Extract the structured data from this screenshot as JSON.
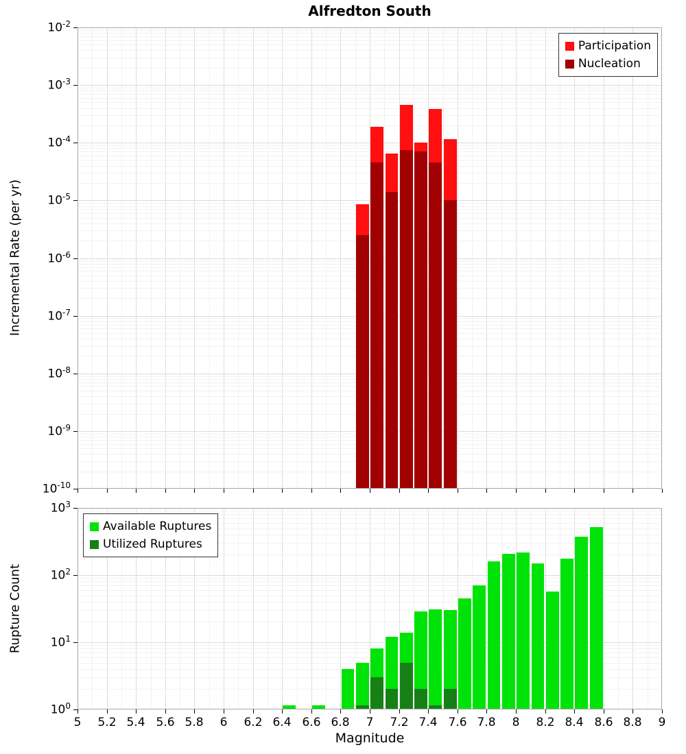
{
  "title": "Alfredton South",
  "chart_data": [
    {
      "type": "bar",
      "title": "Alfredton South",
      "ylabel": "Incremental Rate (per yr)",
      "yscale": "log",
      "ylim": [
        1e-10,
        0.01
      ],
      "xlim": [
        5,
        9
      ],
      "bin_width": 0.1,
      "grid": true,
      "legend_position": "top-right",
      "x": [
        6.95,
        7.05,
        7.15,
        7.25,
        7.35,
        7.45,
        7.55
      ],
      "series": [
        {
          "name": "Participation",
          "color": "#ff0f0f",
          "values": [
            8.5e-06,
            0.00019,
            6.5e-05,
            0.00045,
            0.0001,
            0.00038,
            0.000115
          ]
        },
        {
          "name": "Nucleation",
          "color": "#a00000",
          "values": [
            2.5e-06,
            4.5e-05,
            1.4e-05,
            7.5e-05,
            7e-05,
            4.5e-05,
            1e-05
          ]
        }
      ]
    },
    {
      "type": "bar",
      "ylabel": "Rupture Count",
      "xlabel": "Magnitude",
      "yscale": "log",
      "ylim": [
        1,
        1000
      ],
      "xlim": [
        5,
        9
      ],
      "bin_width": 0.1,
      "grid": true,
      "legend_position": "top-left",
      "xtick_labels": [
        "5",
        "5.2",
        "5.4",
        "5.6",
        "5.8",
        "6",
        "6.2",
        "6.4",
        "6.6",
        "6.8",
        "7",
        "7.2",
        "7.4",
        "7.6",
        "7.8",
        "8",
        "8.2",
        "8.4",
        "8.6",
        "8.8",
        "9"
      ],
      "x": [
        6.45,
        6.65,
        6.85,
        6.95,
        7.05,
        7.15,
        7.25,
        7.35,
        7.45,
        7.55,
        7.65,
        7.75,
        7.85,
        7.95,
        8.05,
        8.15,
        8.25,
        8.35,
        8.45,
        8.55
      ],
      "series": [
        {
          "name": "Available Ruptures",
          "color": "#00e308",
          "values": [
            1,
            1,
            4,
            5,
            8,
            12,
            14,
            29,
            31,
            30,
            45,
            70,
            160,
            205,
            215,
            150,
            57,
            175,
            370,
            520
          ]
        },
        {
          "name": "Utilized Ruptures",
          "color": "#168016",
          "values": [
            0,
            0,
            0,
            1,
            3,
            2,
            5,
            2,
            1,
            2,
            0,
            0,
            0,
            0,
            0,
            0,
            0,
            0,
            0,
            0
          ]
        }
      ]
    }
  ]
}
